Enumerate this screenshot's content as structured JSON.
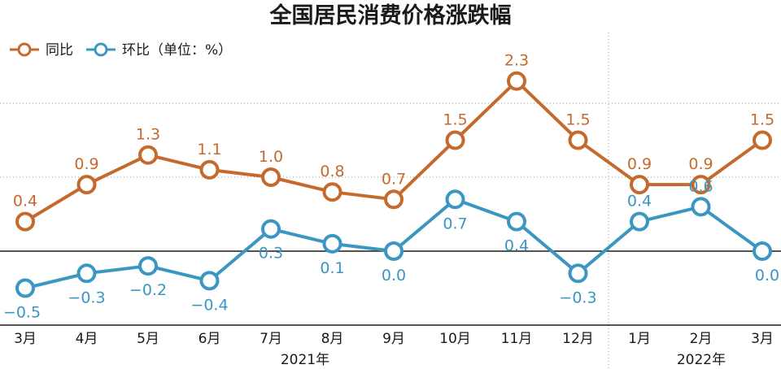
{
  "chart_data": {
    "type": "line",
    "title": "全国居民消费价格涨跌幅",
    "unit_note": "（单位：%）",
    "categories": [
      "3月",
      "4月",
      "5月",
      "6月",
      "7月",
      "8月",
      "9月",
      "10月",
      "11月",
      "12月",
      "1月",
      "2月",
      "3月"
    ],
    "year_labels": [
      "2021年",
      "2022年"
    ],
    "series": [
      {
        "name": "同比",
        "color": "#c56a2c",
        "values": [
          0.4,
          0.9,
          1.3,
          1.1,
          1.0,
          0.8,
          0.7,
          1.5,
          2.3,
          1.5,
          0.9,
          0.9,
          1.5
        ],
        "labels": [
          "0.4",
          "0.9",
          "1.3",
          "1.1",
          "1.0",
          "0.8",
          "0.7",
          "1.5",
          "2.3",
          "1.5",
          "0.9",
          "0.9",
          "1.5"
        ]
      },
      {
        "name": "环比",
        "color": "#3b96c2",
        "values": [
          -0.5,
          -0.3,
          -0.2,
          -0.4,
          0.3,
          0.1,
          0.0,
          0.7,
          0.4,
          -0.3,
          0.4,
          0.6,
          0.0
        ],
        "labels": [
          "−0.5",
          "−0.3",
          "−0.2",
          "−0.4",
          "0.3",
          "0.1",
          "0.0",
          "0.7",
          "0.4",
          "−0.3",
          "0.4",
          "0.6",
          "0.0"
        ]
      }
    ],
    "ylim": [
      -0.6,
      2.6
    ],
    "gridlines": [
      1.0,
      2.0
    ],
    "zero_line": 0
  }
}
